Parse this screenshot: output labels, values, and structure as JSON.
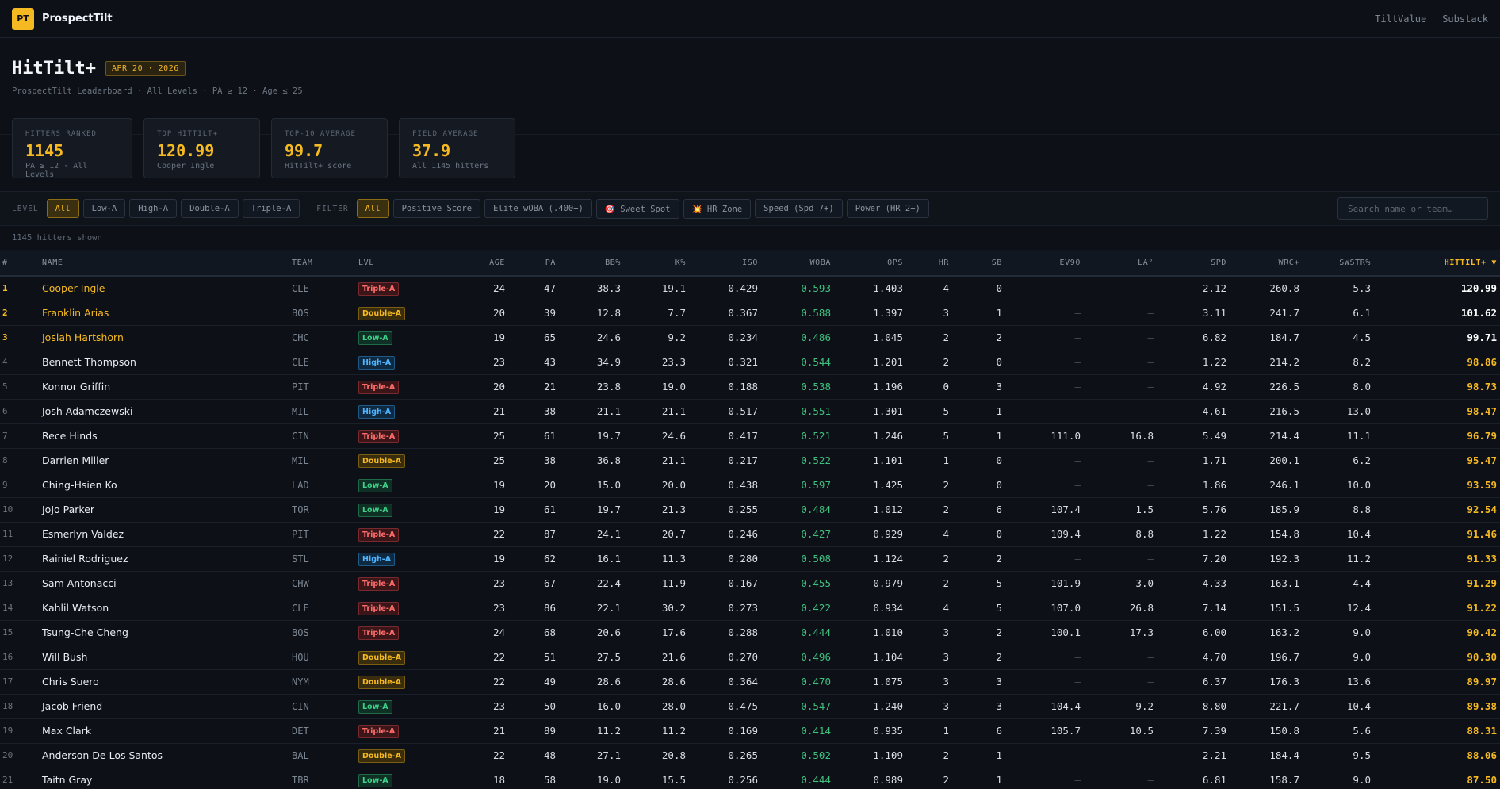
{
  "nav": {
    "logo": "PT",
    "brand": "ProspectTilt",
    "links": [
      "TiltValue",
      "Substack"
    ]
  },
  "header": {
    "title": "HitTilt+",
    "date_badge": "APR 20 · 2026",
    "subtitle": "ProspectTilt Leaderboard · All Levels · PA ≥ 12 · Age ≤ 25"
  },
  "stats": [
    {
      "label": "HITTERS RANKED",
      "value": "1145",
      "sub": "PA ≥ 12 · All Levels"
    },
    {
      "label": "TOP HITTILT+",
      "value": "120.99",
      "sub": "Cooper Ingle"
    },
    {
      "label": "TOP-10 AVERAGE",
      "value": "99.7",
      "sub": "HitTilt+ score"
    },
    {
      "label": "FIELD AVERAGE",
      "value": "37.9",
      "sub": "All 1145 hitters"
    }
  ],
  "filters": {
    "level_label": "LEVEL",
    "levels": [
      "All",
      "Low-A",
      "High-A",
      "Double-A",
      "Triple-A"
    ],
    "active_level": "All",
    "filter_label": "FILTER",
    "options": [
      "All",
      "Positive Score",
      "Elite wOBA (.400+)",
      "🎯 Sweet Spot",
      "💥 HR Zone",
      "Speed (Spd 7+)",
      "Power (HR 2+)"
    ],
    "active_filter": "All",
    "search_placeholder": "Search name or team…"
  },
  "shown_text": "1145 hitters shown",
  "table": {
    "columns": [
      "#",
      "NAME",
      "TEAM",
      "LVL",
      "AGE",
      "PA",
      "BB%",
      "K%",
      "ISO",
      "WOBA",
      "OPS",
      "HR",
      "SB",
      "EV90",
      "LA°",
      "SPD",
      "WRC+",
      "SWSTR%",
      "HITTILT+ ▼"
    ],
    "rows": [
      [
        "1",
        "Cooper Ingle",
        "CLE",
        "Triple-A",
        "24",
        "47",
        "38.3",
        "19.1",
        "0.429",
        "0.593",
        "1.403",
        "4",
        "0",
        "—",
        "—",
        "2.12",
        "260.8",
        "5.3",
        "120.99"
      ],
      [
        "2",
        "Franklin Arias",
        "BOS",
        "Double-A",
        "20",
        "39",
        "12.8",
        "7.7",
        "0.367",
        "0.588",
        "1.397",
        "3",
        "1",
        "—",
        "—",
        "3.11",
        "241.7",
        "6.1",
        "101.62"
      ],
      [
        "3",
        "Josiah Hartshorn",
        "CHC",
        "Low-A",
        "19",
        "65",
        "24.6",
        "9.2",
        "0.234",
        "0.486",
        "1.045",
        "2",
        "2",
        "—",
        "—",
        "6.82",
        "184.7",
        "4.5",
        "99.71"
      ],
      [
        "4",
        "Bennett Thompson",
        "CLE",
        "High-A",
        "23",
        "43",
        "34.9",
        "23.3",
        "0.321",
        "0.544",
        "1.201",
        "2",
        "0",
        "—",
        "—",
        "1.22",
        "214.2",
        "8.2",
        "98.86"
      ],
      [
        "5",
        "Konnor Griffin",
        "PIT",
        "Triple-A",
        "20",
        "21",
        "23.8",
        "19.0",
        "0.188",
        "0.538",
        "1.196",
        "0",
        "3",
        "—",
        "—",
        "4.92",
        "226.5",
        "8.0",
        "98.73"
      ],
      [
        "6",
        "Josh Adamczewski",
        "MIL",
        "High-A",
        "21",
        "38",
        "21.1",
        "21.1",
        "0.517",
        "0.551",
        "1.301",
        "5",
        "1",
        "—",
        "—",
        "4.61",
        "216.5",
        "13.0",
        "98.47"
      ],
      [
        "7",
        "Rece Hinds",
        "CIN",
        "Triple-A",
        "25",
        "61",
        "19.7",
        "24.6",
        "0.417",
        "0.521",
        "1.246",
        "5",
        "1",
        "111.0",
        "16.8",
        "5.49",
        "214.4",
        "11.1",
        "96.79"
      ],
      [
        "8",
        "Darrien Miller",
        "MIL",
        "Double-A",
        "25",
        "38",
        "36.8",
        "21.1",
        "0.217",
        "0.522",
        "1.101",
        "1",
        "0",
        "—",
        "—",
        "1.71",
        "200.1",
        "6.2",
        "95.47"
      ],
      [
        "9",
        "Ching-Hsien Ko",
        "LAD",
        "Low-A",
        "19",
        "20",
        "15.0",
        "20.0",
        "0.438",
        "0.597",
        "1.425",
        "2",
        "0",
        "—",
        "—",
        "1.86",
        "246.1",
        "10.0",
        "93.59"
      ],
      [
        "10",
        "JoJo Parker",
        "TOR",
        "Low-A",
        "19",
        "61",
        "19.7",
        "21.3",
        "0.255",
        "0.484",
        "1.012",
        "2",
        "6",
        "107.4",
        "1.5",
        "5.76",
        "185.9",
        "8.8",
        "92.54"
      ],
      [
        "11",
        "Esmerlyn Valdez",
        "PIT",
        "Triple-A",
        "22",
        "87",
        "24.1",
        "20.7",
        "0.246",
        "0.427",
        "0.929",
        "4",
        "0",
        "109.4",
        "8.8",
        "1.22",
        "154.8",
        "10.4",
        "91.46"
      ],
      [
        "12",
        "Rainiel Rodriguez",
        "STL",
        "High-A",
        "19",
        "62",
        "16.1",
        "11.3",
        "0.280",
        "0.508",
        "1.124",
        "2",
        "2",
        "—",
        "—",
        "7.20",
        "192.3",
        "11.2",
        "91.33"
      ],
      [
        "13",
        "Sam Antonacci",
        "CHW",
        "Triple-A",
        "23",
        "67",
        "22.4",
        "11.9",
        "0.167",
        "0.455",
        "0.979",
        "2",
        "5",
        "101.9",
        "3.0",
        "4.33",
        "163.1",
        "4.4",
        "91.29"
      ],
      [
        "14",
        "Kahlil Watson",
        "CLE",
        "Triple-A",
        "23",
        "86",
        "22.1",
        "30.2",
        "0.273",
        "0.422",
        "0.934",
        "4",
        "5",
        "107.0",
        "26.8",
        "7.14",
        "151.5",
        "12.4",
        "91.22"
      ],
      [
        "15",
        "Tsung-Che Cheng",
        "BOS",
        "Triple-A",
        "24",
        "68",
        "20.6",
        "17.6",
        "0.288",
        "0.444",
        "1.010",
        "3",
        "2",
        "100.1",
        "17.3",
        "6.00",
        "163.2",
        "9.0",
        "90.42"
      ],
      [
        "16",
        "Will Bush",
        "HOU",
        "Double-A",
        "22",
        "51",
        "27.5",
        "21.6",
        "0.270",
        "0.496",
        "1.104",
        "3",
        "2",
        "—",
        "—",
        "4.70",
        "196.7",
        "9.0",
        "90.30"
      ],
      [
        "17",
        "Chris Suero",
        "NYM",
        "Double-A",
        "22",
        "49",
        "28.6",
        "28.6",
        "0.364",
        "0.470",
        "1.075",
        "3",
        "3",
        "—",
        "—",
        "6.37",
        "176.3",
        "13.6",
        "89.97"
      ],
      [
        "18",
        "Jacob Friend",
        "CIN",
        "Low-A",
        "23",
        "50",
        "16.0",
        "28.0",
        "0.475",
        "0.547",
        "1.240",
        "3",
        "3",
        "104.4",
        "9.2",
        "8.80",
        "221.7",
        "10.4",
        "89.38"
      ],
      [
        "19",
        "Max Clark",
        "DET",
        "Triple-A",
        "21",
        "89",
        "11.2",
        "11.2",
        "0.169",
        "0.414",
        "0.935",
        "1",
        "6",
        "105.7",
        "10.5",
        "7.39",
        "150.8",
        "5.6",
        "88.31"
      ],
      [
        "20",
        "Anderson De Los Santos",
        "BAL",
        "Double-A",
        "22",
        "48",
        "27.1",
        "20.8",
        "0.265",
        "0.502",
        "1.109",
        "2",
        "1",
        "—",
        "—",
        "2.21",
        "184.4",
        "9.5",
        "88.06"
      ],
      [
        "21",
        "Taitn Gray",
        "TBR",
        "Low-A",
        "18",
        "58",
        "19.0",
        "15.5",
        "0.256",
        "0.444",
        "0.989",
        "2",
        "1",
        "—",
        "—",
        "6.81",
        "158.7",
        "9.0",
        "87.50"
      ]
    ]
  }
}
